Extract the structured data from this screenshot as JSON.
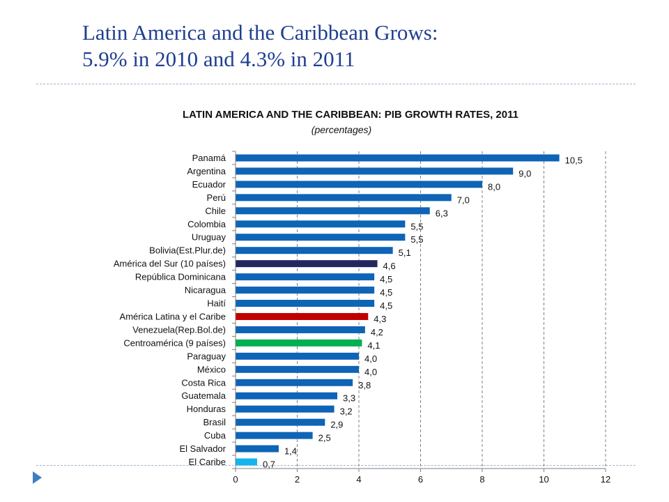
{
  "slide": {
    "title_line1": "Latin America and the Caribbean Grows:",
    "title_line2": "5.9% in 2010 and 4.3% in 2011"
  },
  "chart_data": {
    "type": "bar",
    "orientation": "horizontal",
    "title": "LATIN AMERICA AND THE CARIBBEAN: PIB GROWTH RATES, 2011",
    "subtitle": "(percentages)",
    "xlabel": "",
    "ylabel": "",
    "xlim": [
      0,
      12
    ],
    "xticks": [
      0,
      2,
      4,
      6,
      8,
      10,
      12
    ],
    "grid": "vertical dashed",
    "legend": "none",
    "categories": [
      "Panamá",
      "Argentina",
      "Ecuador",
      "Perú",
      "Chile",
      "Colombia",
      "Uruguay",
      "Bolivia(Est.Plur.de)",
      "América del Sur (10 países)",
      "República Dominicana",
      "Nicaragua",
      "Haití",
      "América Latina y el Caribe",
      "Venezuela(Rep.Bol.de)",
      "Centroamérica (9 países)",
      "Paraguay",
      "México",
      "Costa Rica",
      "Guatemala",
      "Honduras",
      "Brasil",
      "Cuba",
      "El Salvador",
      "El Caribe"
    ],
    "values": [
      10.5,
      9.0,
      8.0,
      7.0,
      6.3,
      5.5,
      5.5,
      5.1,
      4.6,
      4.5,
      4.5,
      4.5,
      4.3,
      4.2,
      4.1,
      4.0,
      4.0,
      3.8,
      3.3,
      3.2,
      2.9,
      2.5,
      1.4,
      0.7
    ],
    "value_labels": [
      "10,5",
      "9,0",
      "8,0",
      "7,0",
      "6,3",
      "5,5",
      "5,5",
      "5,1",
      "4,6",
      "4,5",
      "4,5",
      "4,5",
      "4,3",
      "4,2",
      "4,1",
      "4,0",
      "4,0",
      "3,8",
      "3,3",
      "3,2",
      "2,9",
      "2,5",
      "1,4",
      "0,7"
    ],
    "colors": [
      "#0E64B6",
      "#0E64B6",
      "#0E64B6",
      "#0E64B6",
      "#0E64B6",
      "#0E64B6",
      "#0E64B6",
      "#0E64B6",
      "#24275F",
      "#0E64B6",
      "#0E64B6",
      "#0E64B6",
      "#C00000",
      "#0E64B6",
      "#00B050",
      "#0E64B6",
      "#0E64B6",
      "#0E64B6",
      "#0E64B6",
      "#0E64B6",
      "#0E64B6",
      "#0E64B6",
      "#0E64B6",
      "#14B4EC"
    ]
  }
}
